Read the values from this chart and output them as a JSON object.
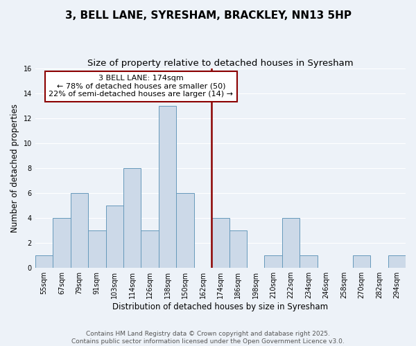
{
  "title": "3, BELL LANE, SYRESHAM, BRACKLEY, NN13 5HP",
  "subtitle": "Size of property relative to detached houses in Syresham",
  "xlabel": "Distribution of detached houses by size in Syresham",
  "ylabel": "Number of detached properties",
  "bar_labels": [
    "55sqm",
    "67sqm",
    "79sqm",
    "91sqm",
    "103sqm",
    "114sqm",
    "126sqm",
    "138sqm",
    "150sqm",
    "162sqm",
    "174sqm",
    "186sqm",
    "198sqm",
    "210sqm",
    "222sqm",
    "234sqm",
    "246sqm",
    "258sqm",
    "270sqm",
    "282sqm",
    "294sqm"
  ],
  "bar_values": [
    1,
    4,
    6,
    3,
    5,
    8,
    3,
    13,
    6,
    0,
    4,
    3,
    0,
    1,
    4,
    1,
    0,
    0,
    1,
    0,
    1
  ],
  "bar_color": "#ccd9e8",
  "bar_edge_color": "#6699bb",
  "background_color": "#edf2f8",
  "grid_color": "#ffffff",
  "vline_color": "#8b0000",
  "annotation_text": "3 BELL LANE: 174sqm\n← 78% of detached houses are smaller (50)\n22% of semi-detached houses are larger (14) →",
  "annotation_box_color": "#ffffff",
  "annotation_box_edge_color": "#8b0000",
  "ylim": [
    0,
    16
  ],
  "yticks": [
    0,
    2,
    4,
    6,
    8,
    10,
    12,
    14,
    16
  ],
  "footer1": "Contains HM Land Registry data © Crown copyright and database right 2025.",
  "footer2": "Contains public sector information licensed under the Open Government Licence v3.0.",
  "title_fontsize": 11,
  "subtitle_fontsize": 9.5,
  "xlabel_fontsize": 8.5,
  "ylabel_fontsize": 8.5,
  "tick_fontsize": 7,
  "annotation_fontsize": 8,
  "footer_fontsize": 6.5
}
